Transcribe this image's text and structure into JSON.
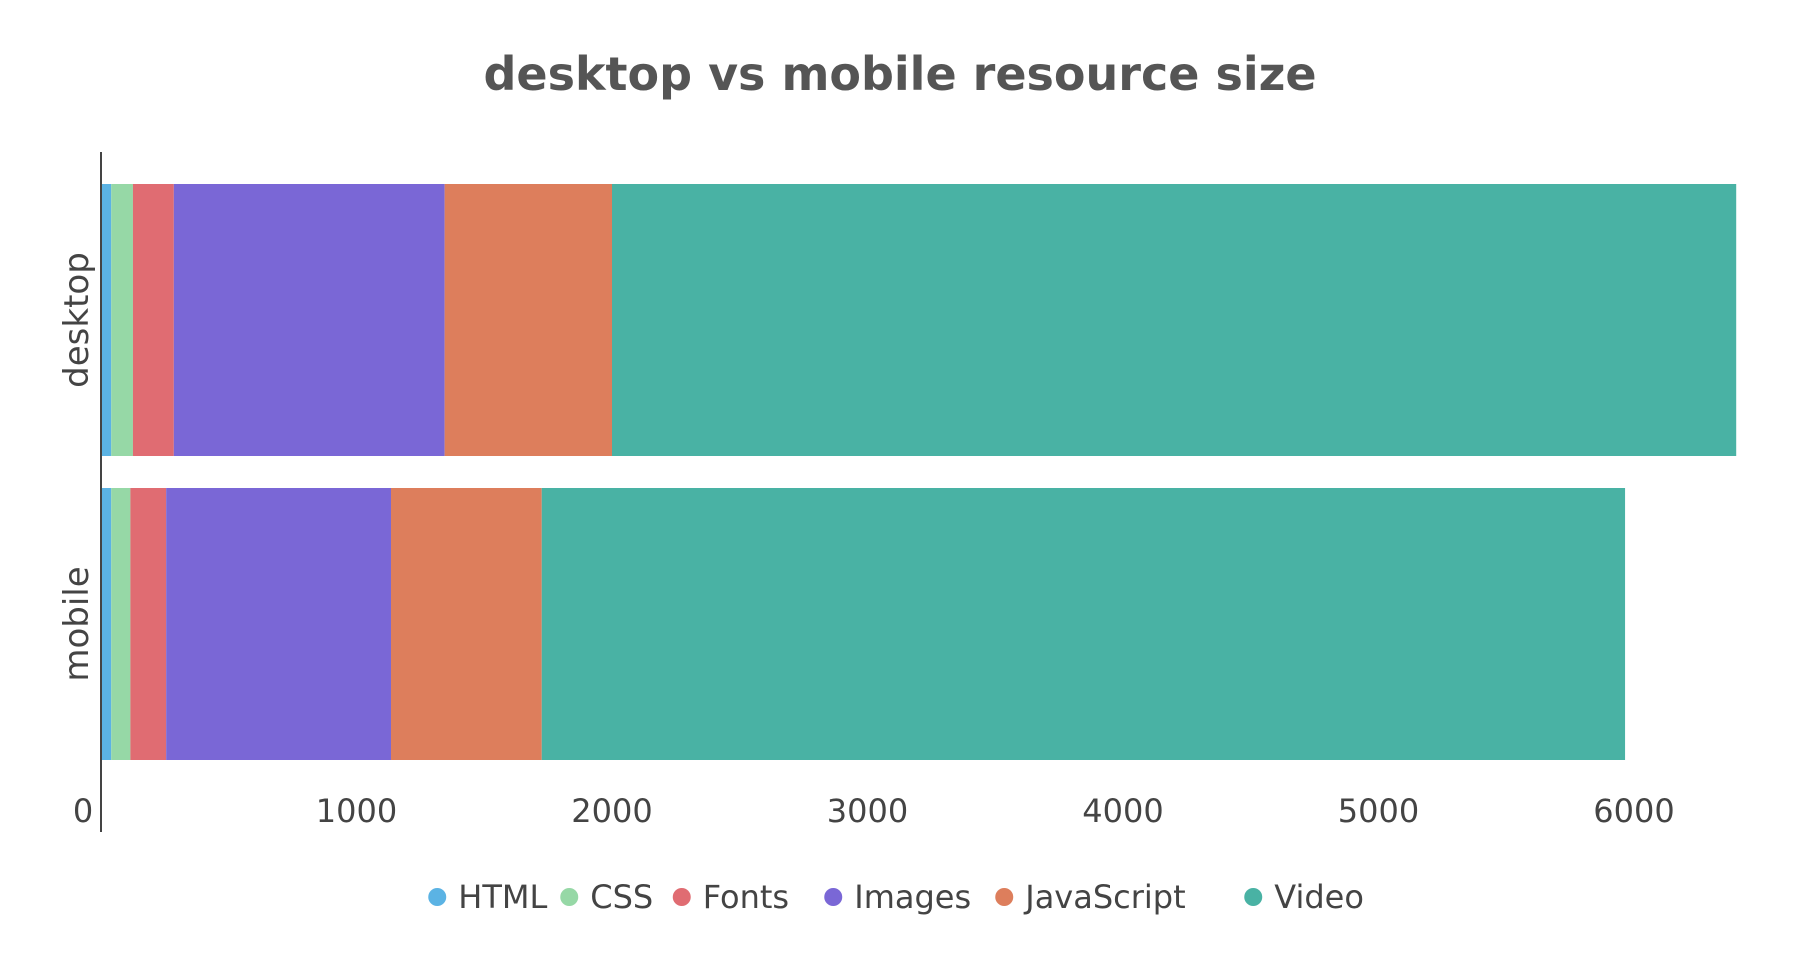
{
  "chart_data": {
    "type": "bar",
    "orientation": "horizontal",
    "stacked": true,
    "title": "desktop vs mobile resource size",
    "xlabel": "",
    "ylabel": "",
    "xlim": [
      0,
      6600
    ],
    "xticks": [
      "0",
      "1000",
      "2000",
      "3000",
      "4000",
      "5000",
      "6000"
    ],
    "xtick_values": [
      0,
      1000,
      2000,
      3000,
      4000,
      5000,
      6000
    ],
    "grid": false,
    "legend_position": "bottom",
    "categories": [
      "desktop",
      "mobile"
    ],
    "series": [
      {
        "name": "HTML",
        "color": "#5bb3e4",
        "values": [
          40,
          40
        ]
      },
      {
        "name": "CSS",
        "color": "#96d8a6",
        "values": [
          85,
          75
        ]
      },
      {
        "name": "Fonts",
        "color": "#e06c72",
        "values": [
          160,
          140
        ]
      },
      {
        "name": "Images",
        "color": "#7a67d6",
        "values": [
          1060,
          880
        ]
      },
      {
        "name": "JavaScript",
        "color": "#dd7e5c",
        "values": [
          655,
          590
        ]
      },
      {
        "name": "Video",
        "color": "#49b2a4",
        "values": [
          4400,
          4240
        ]
      }
    ]
  }
}
